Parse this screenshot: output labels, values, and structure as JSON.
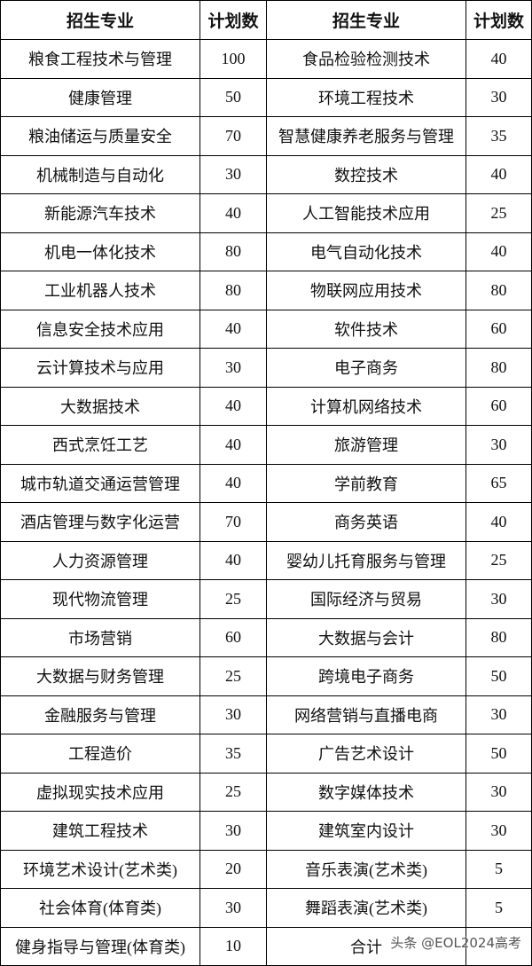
{
  "table": {
    "header": [
      "招生专业",
      "计划数",
      "招生专业",
      "计划数"
    ],
    "rows": [
      [
        "粮食工程技术与管理",
        100,
        "食品检验检测技术",
        40
      ],
      [
        "健康管理",
        50,
        "环境工程技术",
        30
      ],
      [
        "粮油储运与质量安全",
        70,
        "智慧健康养老服务与管理",
        35
      ],
      [
        "机械制造与自动化",
        30,
        "数控技术",
        40
      ],
      [
        "新能源汽车技术",
        40,
        "人工智能技术应用",
        25
      ],
      [
        "机电一体化技术",
        80,
        "电气自动化技术",
        40
      ],
      [
        "工业机器人技术",
        80,
        "物联网应用技术",
        80
      ],
      [
        "信息安全技术应用",
        40,
        "软件技术",
        60
      ],
      [
        "云计算技术与应用",
        30,
        "电子商务",
        80
      ],
      [
        "大数据技术",
        40,
        "计算机网络技术",
        60
      ],
      [
        "西式烹饪工艺",
        40,
        "旅游管理",
        30
      ],
      [
        "城市轨道交通运营管理",
        40,
        "学前教育",
        65
      ],
      [
        "酒店管理与数字化运营",
        70,
        "商务英语",
        40
      ],
      [
        "人力资源管理",
        40,
        "婴幼儿托育服务与管理",
        25
      ],
      [
        "现代物流管理",
        25,
        "国际经济与贸易",
        30
      ],
      [
        "市场营销",
        60,
        "大数据与会计",
        80
      ],
      [
        "大数据与财务管理",
        25,
        "跨境电子商务",
        50
      ],
      [
        "金融服务与管理",
        30,
        "网络营销与直播电商",
        30
      ],
      [
        "工程造价",
        35,
        "广告艺术设计",
        50
      ],
      [
        "虚拟现实技术应用",
        25,
        "数字媒体技术",
        30
      ],
      [
        "建筑工程技术",
        30,
        "建筑室内设计",
        30
      ],
      [
        "环境艺术设计(艺术类)",
        20,
        "音乐表演(艺术类)",
        5
      ],
      [
        "社会体育(体育类)",
        30,
        "舞蹈表演(艺术类)",
        5
      ],
      [
        "健身指导与管理(体育类)",
        10,
        "合计"
      ]
    ]
  },
  "watermark": "头条 @EOL2024高考"
}
